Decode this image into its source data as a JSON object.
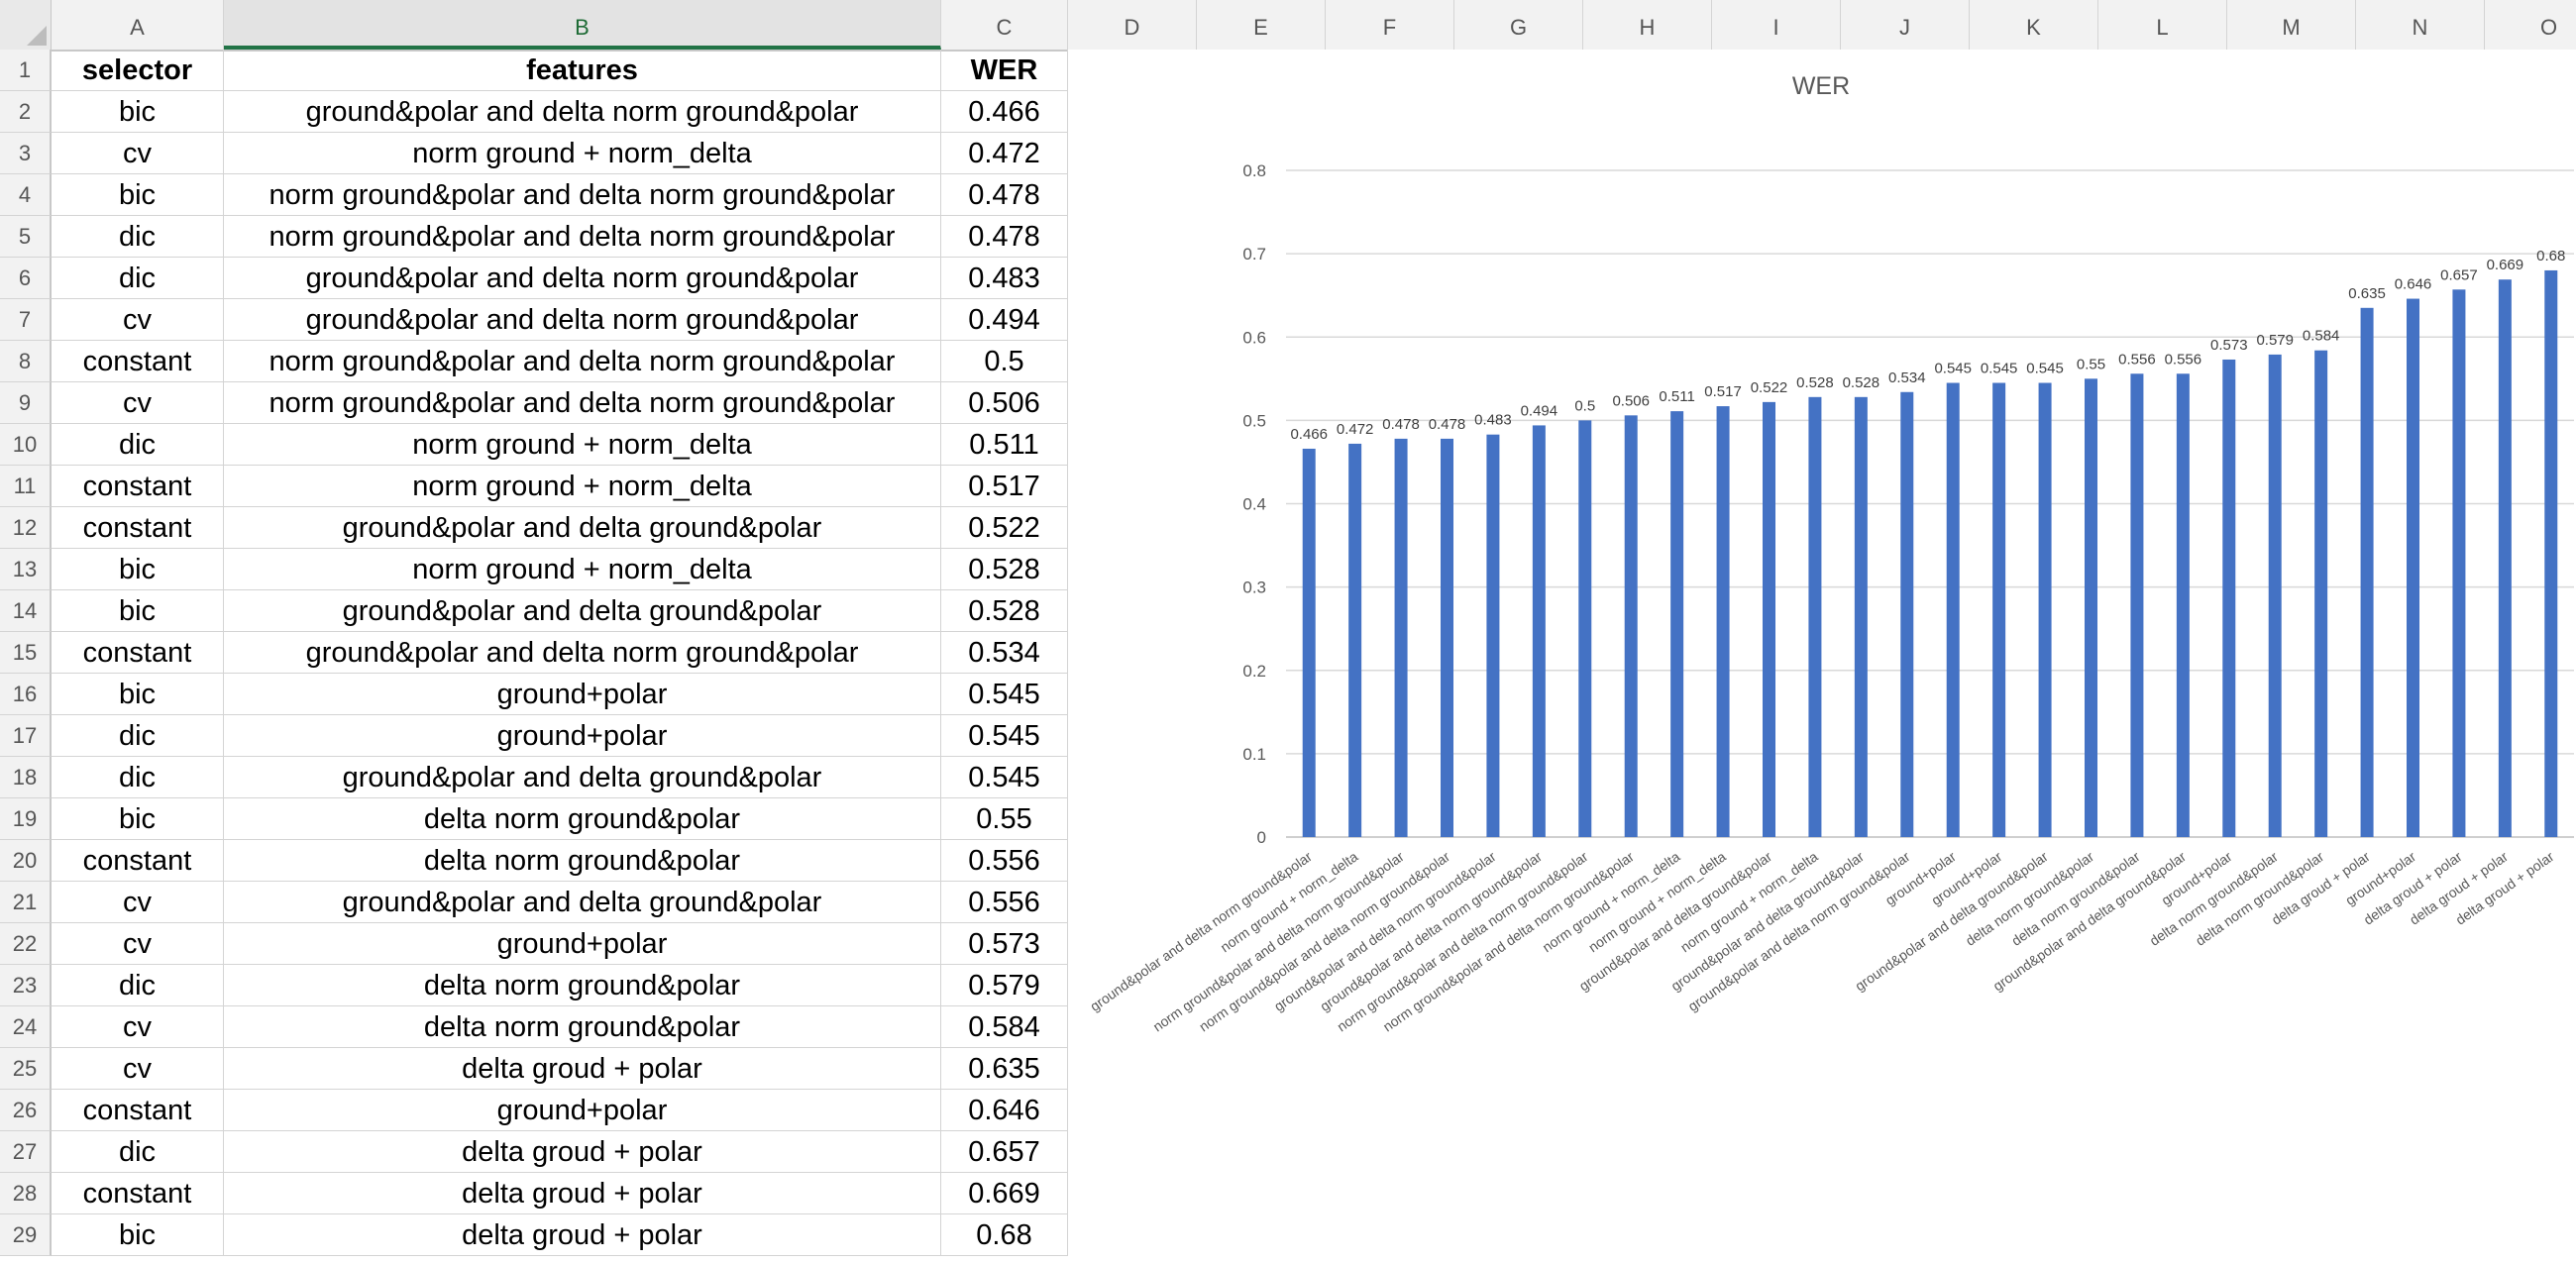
{
  "sheet": {
    "column_headers": [
      "A",
      "B",
      "C",
      "D",
      "E",
      "F",
      "G",
      "H",
      "I",
      "J",
      "K",
      "L",
      "M",
      "N",
      "O"
    ],
    "selected_column": "B",
    "row_numbers": [
      "1",
      "2",
      "3",
      "4",
      "5",
      "6",
      "7",
      "8",
      "9",
      "10",
      "11",
      "12",
      "13",
      "14",
      "15",
      "16",
      "17",
      "18",
      "19",
      "20",
      "21",
      "22",
      "23",
      "24",
      "25",
      "26",
      "27",
      "28",
      "29"
    ],
    "header": {
      "selector": "selector",
      "features": "features",
      "wer": "WER"
    },
    "rows": [
      {
        "selector": "bic",
        "features": "ground&polar and delta norm ground&polar",
        "wer": "0.466"
      },
      {
        "selector": "cv",
        "features": "norm ground + norm_delta",
        "wer": "0.472"
      },
      {
        "selector": "bic",
        "features": "norm ground&polar and delta norm ground&polar",
        "wer": "0.478"
      },
      {
        "selector": "dic",
        "features": "norm ground&polar and delta norm ground&polar",
        "wer": "0.478"
      },
      {
        "selector": "dic",
        "features": "ground&polar and delta norm ground&polar",
        "wer": "0.483"
      },
      {
        "selector": "cv",
        "features": "ground&polar and delta norm ground&polar",
        "wer": "0.494"
      },
      {
        "selector": "constant",
        "features": "norm ground&polar and delta norm ground&polar",
        "wer": "0.5"
      },
      {
        "selector": "cv",
        "features": "norm ground&polar and delta norm ground&polar",
        "wer": "0.506"
      },
      {
        "selector": "dic",
        "features": "norm ground + norm_delta",
        "wer": "0.511"
      },
      {
        "selector": "constant",
        "features": "norm ground + norm_delta",
        "wer": "0.517"
      },
      {
        "selector": "constant",
        "features": "ground&polar and delta ground&polar",
        "wer": "0.522"
      },
      {
        "selector": "bic",
        "features": "norm ground + norm_delta",
        "wer": "0.528"
      },
      {
        "selector": "bic",
        "features": "ground&polar and delta ground&polar",
        "wer": "0.528"
      },
      {
        "selector": "constant",
        "features": "ground&polar and delta norm ground&polar",
        "wer": "0.534"
      },
      {
        "selector": "bic",
        "features": "ground+polar",
        "wer": "0.545"
      },
      {
        "selector": "dic",
        "features": "ground+polar",
        "wer": "0.545"
      },
      {
        "selector": "dic",
        "features": "ground&polar and delta ground&polar",
        "wer": "0.545"
      },
      {
        "selector": "bic",
        "features": "delta norm ground&polar",
        "wer": "0.55"
      },
      {
        "selector": "constant",
        "features": "delta norm ground&polar",
        "wer": "0.556"
      },
      {
        "selector": "cv",
        "features": "ground&polar and delta ground&polar",
        "wer": "0.556"
      },
      {
        "selector": "cv",
        "features": "ground+polar",
        "wer": "0.573"
      },
      {
        "selector": "dic",
        "features": "delta norm ground&polar",
        "wer": "0.579"
      },
      {
        "selector": "cv",
        "features": "delta norm ground&polar",
        "wer": "0.584"
      },
      {
        "selector": "cv",
        "features": "delta groud + polar",
        "wer": "0.635"
      },
      {
        "selector": "constant",
        "features": "ground+polar",
        "wer": "0.646"
      },
      {
        "selector": "dic",
        "features": "delta groud + polar",
        "wer": "0.657"
      },
      {
        "selector": "constant",
        "features": "delta groud + polar",
        "wer": "0.669"
      },
      {
        "selector": "bic",
        "features": "delta groud + polar",
        "wer": "0.68"
      }
    ]
  },
  "chart_data": {
    "type": "bar",
    "title": "WER",
    "xlabel": "",
    "ylabel": "",
    "ylim": [
      0,
      0.8
    ],
    "y_ticks": [
      "0",
      "0.1",
      "0.2",
      "0.3",
      "0.4",
      "0.5",
      "0.6",
      "0.7",
      "0.8"
    ],
    "grid": true,
    "legend": "none",
    "bar_color": "#4472c4",
    "categories": [
      "ground&polar and delta norm ground&polar",
      "norm ground + norm_delta",
      "norm ground&polar and delta norm ground&polar",
      "norm ground&polar and delta norm ground&polar",
      "ground&polar and delta norm ground&polar",
      "ground&polar and delta norm ground&polar",
      "norm ground&polar and delta norm ground&polar",
      "norm ground&polar and delta norm ground&polar",
      "norm ground + norm_delta",
      "norm ground + norm_delta",
      "ground&polar and delta ground&polar",
      "norm ground + norm_delta",
      "ground&polar and delta ground&polar",
      "ground&polar and delta norm ground&polar",
      "ground+polar",
      "ground+polar",
      "ground&polar and delta ground&polar",
      "delta norm ground&polar",
      "delta norm ground&polar",
      "ground&polar and delta ground&polar",
      "ground+polar",
      "delta norm ground&polar",
      "delta norm ground&polar",
      "delta groud + polar",
      "ground+polar",
      "delta groud + polar",
      "delta groud + polar",
      "delta groud + polar"
    ],
    "values": [
      0.466,
      0.472,
      0.478,
      0.478,
      0.483,
      0.494,
      0.5,
      0.506,
      0.511,
      0.517,
      0.522,
      0.528,
      0.528,
      0.534,
      0.545,
      0.545,
      0.545,
      0.55,
      0.556,
      0.556,
      0.573,
      0.579,
      0.584,
      0.635,
      0.646,
      0.657,
      0.669,
      0.68
    ],
    "data_labels": [
      "0.466",
      "0.472",
      "0.478",
      "0.478",
      "0.483",
      "0.494",
      "0.5",
      "0.506",
      "0.511",
      "0.517",
      "0.522",
      "0.528",
      "0.528",
      "0.534",
      "0.545",
      "0.545",
      "0.545",
      "0.55",
      "0.556",
      "0.556",
      "0.573",
      "0.579",
      "0.584",
      "0.635",
      "0.646",
      "0.657",
      "0.669",
      "0.68"
    ]
  }
}
